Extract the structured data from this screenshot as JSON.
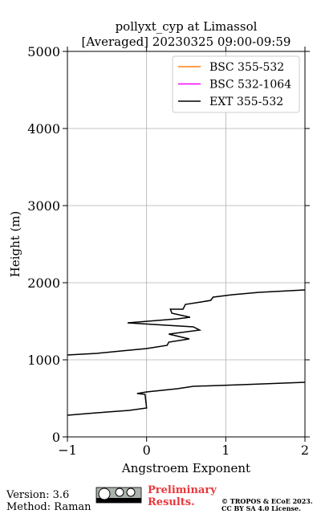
{
  "chart_data": {
    "type": "line",
    "title": [
      "pollyxt_cyp at Limassol",
      "[Averaged] 20230325 09:00-09:59"
    ],
    "x_label": "Angstroem Exponent",
    "y_label": "Height (m)",
    "xlim": [
      -1,
      2
    ],
    "xticks": [
      {
        "value": -1,
        "label": "−1"
      },
      0,
      1,
      2
    ],
    "ylim": [
      0,
      5000
    ],
    "yticks": [
      0,
      1000,
      2000,
      3000,
      4000,
      5000
    ],
    "grid": true,
    "legend": "upper right",
    "series": [
      {
        "name": "BSC 355-532",
        "color": "#ff7f0e",
        "x": [],
        "values": []
      },
      {
        "name": "BSC 532-1064",
        "color": "#ff00ff",
        "x": [],
        "values": []
      },
      {
        "name": "EXT 355-532",
        "color": "#000000",
        "x": [
          2.0,
          1.42,
          1.08,
          0.84,
          0.81,
          0.69,
          0.49,
          0.46,
          0.3,
          0.32,
          0.55,
          0.39,
          -0.24,
          0.59,
          0.67,
          0.28,
          0.54,
          0.28,
          0.26,
          0,
          -0.32,
          -0.63,
          -1.0,
          null,
          2.0,
          1.2,
          0.59,
          0.39,
          0,
          -0.12,
          -0.02,
          0,
          -0.22,
          -0.63,
          -1.0
        ],
        "values": [
          1906,
          1875,
          1844,
          1812,
          1771,
          1750,
          1719,
          1656,
          1656,
          1604,
          1552,
          1531,
          1479,
          1427,
          1385,
          1333,
          1271,
          1229,
          1188,
          1146,
          1115,
          1083,
          1063,
          null,
          708,
          677,
          656,
          625,
          583,
          563,
          552,
          375,
          344,
          313,
          281
        ]
      }
    ]
  },
  "footer": {
    "version": "Version: 3.6",
    "method": "Method: Raman",
    "status": "Preliminary Results.",
    "copyright": [
      "© TROPOS & ECoE 2023.",
      "CC BY SA 4.0 License."
    ]
  }
}
